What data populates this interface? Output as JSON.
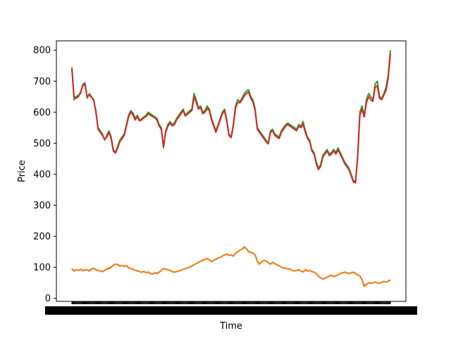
{
  "chart_data": {
    "type": "line",
    "title": "",
    "xlabel": "Time",
    "ylabel": "Price",
    "ylim": [
      -10,
      830
    ],
    "yticks": [
      0,
      100,
      200,
      300,
      400,
      500,
      600,
      700,
      800
    ],
    "x_tick_note": "x tick labels are overlapping and illegible",
    "grid": false,
    "legend": "none",
    "colors": {
      "series_1": "#1f77b4",
      "series_2": "#ff7f0e",
      "series_3": "#2ca02c",
      "series_4": "#d62728"
    },
    "series": [
      {
        "color": "#1f77b4",
        "values": [
          95,
          88,
          92,
          90,
          93,
          89,
          91,
          92,
          88,
          94,
          97,
          92,
          90,
          88,
          86,
          90,
          94,
          96,
          100,
          106,
          110,
          108,
          104,
          106,
          103,
          105,
          98,
          96,
          93,
          90,
          88,
          86,
          84,
          86,
          83,
          84,
          80,
          78,
          82,
          80,
          84,
          90,
          96,
          94,
          92,
          90,
          86,
          84,
          86,
          88,
          90,
          94,
          96,
          98,
          100,
          104,
          108,
          112,
          116,
          120,
          122,
          126,
          128,
          124,
          118,
          122,
          126,
          130,
          132,
          136,
          140,
          142,
          138,
          140,
          136,
          145,
          150,
          155,
          158,
          165,
          160,
          150,
          148,
          145,
          140,
          120,
          110,
          118,
          122,
          120,
          115,
          110,
          116,
          112,
          108,
          105,
          100,
          98,
          96,
          95,
          94,
          90,
          88,
          90,
          92,
          88,
          85,
          92,
          88,
          90,
          86,
          84,
          80,
          72,
          66,
          62,
          64,
          68,
          72,
          74,
          70,
          72,
          76,
          80,
          82,
          84,
          82,
          80,
          82,
          84,
          80,
          76,
          72,
          60,
          40,
          45,
          50,
          48,
          50,
          52,
          50,
          48,
          52,
          54,
          52,
          55,
          58
        ]
      },
      {
        "color": "#ff7f0e",
        "values": [
          96,
          89,
          92,
          90,
          94,
          89,
          92,
          92,
          89,
          95,
          97,
          93,
          90,
          88,
          87,
          90,
          95,
          97,
          101,
          107,
          110,
          108,
          105,
          106,
          103,
          105,
          99,
          96,
          94,
          90,
          89,
          86,
          84,
          86,
          83,
          85,
          80,
          78,
          82,
          81,
          84,
          90,
          96,
          94,
          92,
          90,
          86,
          84,
          86,
          88,
          90,
          94,
          96,
          98,
          101,
          104,
          108,
          112,
          116,
          120,
          123,
          126,
          128,
          124,
          118,
          122,
          126,
          130,
          132,
          136,
          140,
          143,
          138,
          140,
          136,
          145,
          150,
          155,
          158,
          166,
          160,
          151,
          148,
          145,
          140,
          120,
          110,
          118,
          122,
          120,
          115,
          110,
          116,
          112,
          108,
          105,
          100,
          98,
          96,
          95,
          94,
          90,
          88,
          90,
          92,
          88,
          85,
          92,
          88,
          90,
          86,
          84,
          80,
          72,
          66,
          62,
          64,
          68,
          72,
          74,
          70,
          72,
          76,
          80,
          82,
          84,
          82,
          80,
          82,
          84,
          80,
          76,
          72,
          60,
          38,
          44,
          50,
          48,
          50,
          52,
          50,
          48,
          52,
          54,
          52,
          55,
          60
        ]
      },
      {
        "color": "#2ca02c",
        "values": [
          745,
          640,
          650,
          655,
          660,
          690,
          695,
          645,
          660,
          650,
          640,
          600,
          550,
          540,
          530,
          510,
          525,
          540,
          520,
          480,
          470,
          490,
          510,
          520,
          530,
          560,
          590,
          605,
          598,
          580,
          590,
          575,
          578,
          585,
          590,
          600,
          595,
          590,
          585,
          580,
          560,
          550,
          485,
          540,
          560,
          570,
          560,
          565,
          580,
          590,
          600,
          610,
          590,
          598,
          605,
          610,
          660,
          640,
          615,
          620,
          600,
          605,
          620,
          610,
          580,
          560,
          540,
          560,
          580,
          600,
          610,
          575,
          530,
          520,
          560,
          620,
          640,
          635,
          645,
          660,
          668,
          672,
          650,
          640,
          610,
          550,
          540,
          530,
          520,
          510,
          500,
          540,
          545,
          530,
          525,
          520,
          540,
          550,
          560,
          565,
          560,
          555,
          550,
          545,
          560,
          555,
          570,
          540,
          520,
          510,
          480,
          470,
          440,
          420,
          430,
          460,
          470,
          480,
          465,
          470,
          480,
          470,
          485,
          470,
          455,
          440,
          430,
          420,
          400,
          380,
          375,
          460,
          600,
          620,
          590,
          640,
          660,
          650,
          640,
          690,
          700,
          650,
          645,
          660,
          680,
          720,
          800
        ]
      },
      {
        "color": "#d62728",
        "values": [
          740,
          650,
          645,
          650,
          665,
          685,
          690,
          650,
          655,
          648,
          638,
          605,
          545,
          535,
          525,
          512,
          520,
          535,
          515,
          475,
          468,
          485,
          505,
          515,
          525,
          555,
          585,
          600,
          592,
          575,
          585,
          572,
          575,
          582,
          586,
          595,
          590,
          586,
          582,
          575,
          555,
          545,
          490,
          535,
          555,
          565,
          556,
          560,
          575,
          585,
          595,
          605,
          588,
          594,
          600,
          605,
          650,
          632,
          610,
          615,
          595,
          600,
          612,
          605,
          575,
          555,
          535,
          555,
          575,
          595,
          605,
          570,
          525,
          518,
          555,
          612,
          632,
          630,
          640,
          652,
          660,
          665,
          645,
          632,
          605,
          545,
          535,
          525,
          515,
          505,
          498,
          535,
          540,
          525,
          520,
          515,
          535,
          545,
          555,
          560,
          555,
          550,
          545,
          540,
          555,
          550,
          562,
          535,
          515,
          505,
          475,
          465,
          435,
          415,
          425,
          455,
          465,
          475,
          460,
          465,
          475,
          465,
          478,
          465,
          450,
          435,
          425,
          415,
          395,
          375,
          372,
          455,
          590,
          610,
          585,
          630,
          650,
          640,
          635,
          680,
          685,
          645,
          640,
          655,
          670,
          710,
          790
        ]
      }
    ]
  }
}
